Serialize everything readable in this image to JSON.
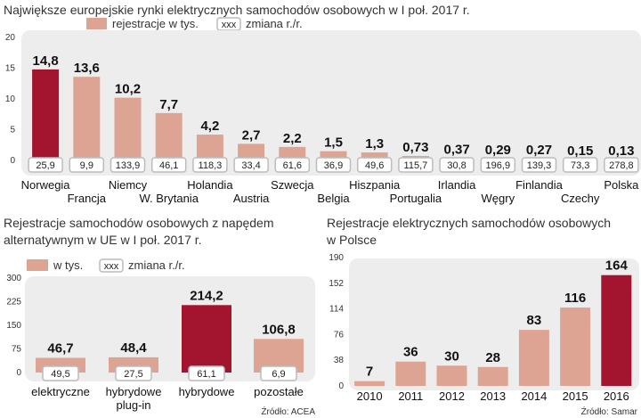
{
  "colors": {
    "bar": "#dea493",
    "highlight": "#a3142f",
    "panel": "#ededed",
    "badge_border": "#bcbcbc"
  },
  "chart_data": [
    {
      "type": "bar",
      "title": "Największe europejskie rynki elektrycznych samochodów osobowych w I poł. 2017 r.",
      "legend": {
        "bar_label": "rejestracje w tys.",
        "badge_text": "xxx",
        "badge_label": "zmiana r./r."
      },
      "categories": [
        "Norwegia",
        "Francja",
        "Niemcy",
        "W. Brytania",
        "Holandia",
        "Austria",
        "Szwecja",
        "Belgia",
        "Hiszpania",
        "Portugalia",
        "Irlandia",
        "Węgry",
        "Finlandia",
        "Czechy",
        "Polska"
      ],
      "value_labels": [
        "14,8",
        "13,6",
        "10,2",
        "7,7",
        "4,2",
        "2,7",
        "2,2",
        "1,5",
        "1,3",
        "0,73",
        "0,37",
        "0,29",
        "0,27",
        "0,15",
        "0,13"
      ],
      "values": [
        14.8,
        13.6,
        10.2,
        7.7,
        4.2,
        2.7,
        2.2,
        1.5,
        1.3,
        0.73,
        0.37,
        0.29,
        0.27,
        0.15,
        0.13
      ],
      "changes": [
        "25,9",
        "9,9",
        "133,9",
        "46,1",
        "118,3",
        "33,4",
        "61,6",
        "36,9",
        "49,6",
        "115,7",
        "30,8",
        "196,9",
        "139,3",
        "73,3",
        "278,8"
      ],
      "highlight_index": 0,
      "ylim": [
        0,
        20
      ],
      "yticks": [
        "0",
        "5",
        "10",
        "15",
        "20"
      ]
    },
    {
      "type": "bar",
      "title_lines": [
        "Rejestracje samochodów osobowych z napędem",
        "alternatywnym w UE w I poł. 2017 r."
      ],
      "legend": {
        "bar_label": "w tys.",
        "badge_text": "xxx",
        "badge_label": "zmiana r./r."
      },
      "categories": [
        [
          "elektryczne"
        ],
        [
          "hybrydowe",
          "plug-in"
        ],
        [
          "hybrydowe"
        ],
        [
          "pozostałe"
        ]
      ],
      "value_labels": [
        "46,7",
        "48,4",
        "214,2",
        "106,8"
      ],
      "values": [
        46.7,
        48.4,
        214.2,
        106.8
      ],
      "changes": [
        "49,5",
        "27,5",
        "61,1",
        "6,9"
      ],
      "highlight_index": 2,
      "ylim": [
        0,
        300
      ],
      "yticks": [
        "0",
        "75",
        "150",
        "225",
        "300"
      ],
      "source": "Źródło: ACEA"
    },
    {
      "type": "bar",
      "title_lines": [
        "Rejestracje elektrycznych samochodów osobowych",
        "w Polsce"
      ],
      "categories": [
        "2010",
        "2011",
        "2012",
        "2013",
        "2014",
        "2015",
        "2016"
      ],
      "value_labels": [
        "7",
        "36",
        "30",
        "28",
        "83",
        "116",
        "164"
      ],
      "values": [
        7,
        36,
        30,
        28,
        83,
        116,
        164
      ],
      "highlight_index": 6,
      "ylim": [
        0,
        190
      ],
      "yticks": [
        "0",
        "38",
        "76",
        "114",
        "152",
        "190"
      ],
      "source": "Źródło: Samar"
    }
  ]
}
